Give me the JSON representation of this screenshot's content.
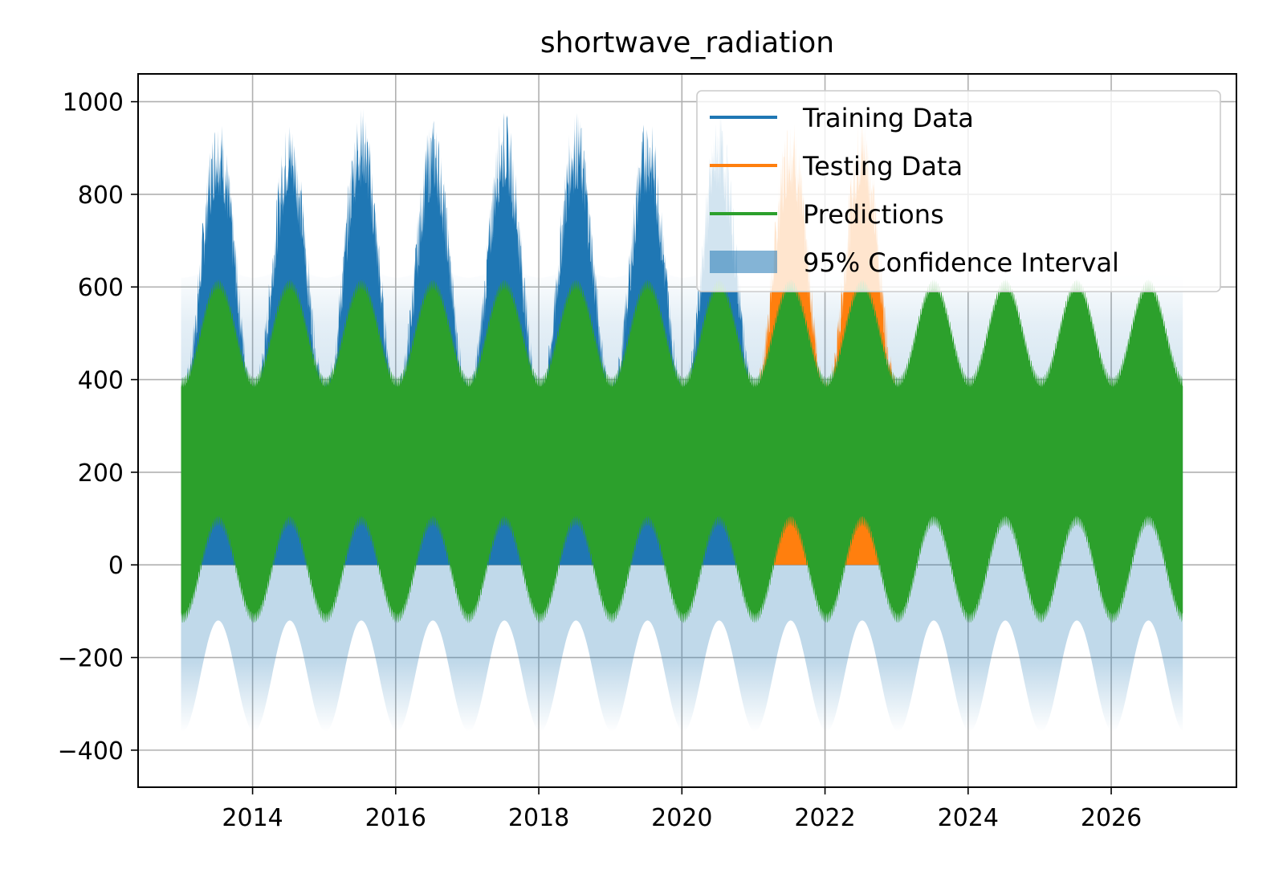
{
  "chart_data": {
    "type": "line",
    "title": "shortwave_radiation",
    "xlabel": "",
    "ylabel": "",
    "xlim": [
      2012.4,
      2027.75
    ],
    "ylim": [
      -480,
      1060
    ],
    "grid": true,
    "legend_position": "top-right",
    "x_ticks": [
      2014,
      2016,
      2018,
      2020,
      2022,
      2024,
      2026
    ],
    "x_tick_labels": [
      "2014",
      "2016",
      "2018",
      "2020",
      "2022",
      "2024",
      "2026"
    ],
    "y_ticks": [
      1000,
      800,
      600,
      400,
      200,
      0,
      -200,
      -400
    ],
    "y_tick_labels": [
      "1000",
      "800",
      "600",
      "400",
      "200",
      "0",
      "−200",
      "−400"
    ],
    "series": [
      {
        "name": "Training Data",
        "kind": "line",
        "color": "#1f77b4",
        "x_range": [
          2013.0,
          2021.0
        ],
        "lower": 0,
        "annual_peaks": [
          {
            "year": 2013,
            "value": 975
          },
          {
            "year": 2014,
            "value": 965
          },
          {
            "year": 2015,
            "value": 993
          },
          {
            "year": 2016,
            "value": 967
          },
          {
            "year": 2017,
            "value": 982
          },
          {
            "year": 2018,
            "value": 982
          },
          {
            "year": 2019,
            "value": 975
          },
          {
            "year": 2020,
            "value": 975
          }
        ],
        "annual_troughs_max": 400
      },
      {
        "name": "Testing Data",
        "kind": "line",
        "color": "#ff7f0e",
        "x_range": [
          2021.0,
          2023.0
        ],
        "lower": 0,
        "annual_peaks": [
          {
            "year": 2021,
            "value": 980
          },
          {
            "year": 2022,
            "value": 980
          }
        ],
        "annual_troughs_max": 400
      },
      {
        "name": "Predictions",
        "kind": "line",
        "color": "#2ca02c",
        "x_range": [
          2013.0,
          2027.0
        ],
        "upper_envelope_peak": 605,
        "upper_envelope_trough": 395,
        "lower_envelope_peak": 95,
        "lower_envelope_trough": -115
      },
      {
        "name": "95% Confidence Interval",
        "kind": "band",
        "color": "#1f77b4",
        "x_range": [
          2013.0,
          2027.0
        ],
        "upper_min": 620,
        "upper_max": 640,
        "lower_peak": -120,
        "lower_trough": -360
      }
    ]
  }
}
